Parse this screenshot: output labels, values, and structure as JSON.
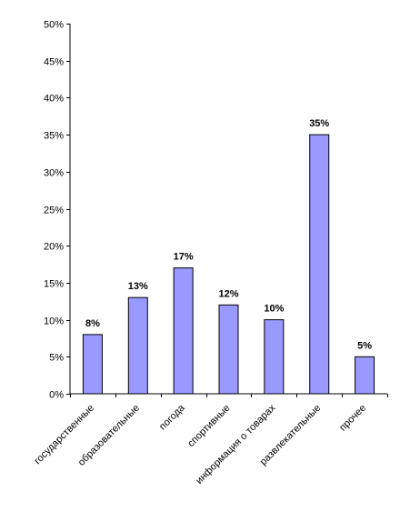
{
  "chart_data": {
    "type": "bar",
    "categories": [
      "государственные",
      "образовательные",
      "погода",
      "спортивные",
      "информация о товарах",
      "развлекательные",
      "прочее"
    ],
    "values": [
      8,
      13,
      17,
      12,
      10,
      35,
      5
    ],
    "data_labels": [
      "8%",
      "13%",
      "17%",
      "12%",
      "10%",
      "35%",
      "5%"
    ],
    "ylim": [
      0,
      50
    ],
    "yticks": [
      0,
      5,
      10,
      15,
      20,
      25,
      30,
      35,
      40,
      45,
      50
    ],
    "ytick_labels": [
      "0%",
      "5%",
      "10%",
      "15%",
      "20%",
      "25%",
      "30%",
      "35%",
      "40%",
      "45%",
      "50%"
    ],
    "grid": false,
    "legend": "none",
    "bar_color": "#9999ff",
    "bar_edge_color": "#000000",
    "axis_color": "#000000"
  }
}
